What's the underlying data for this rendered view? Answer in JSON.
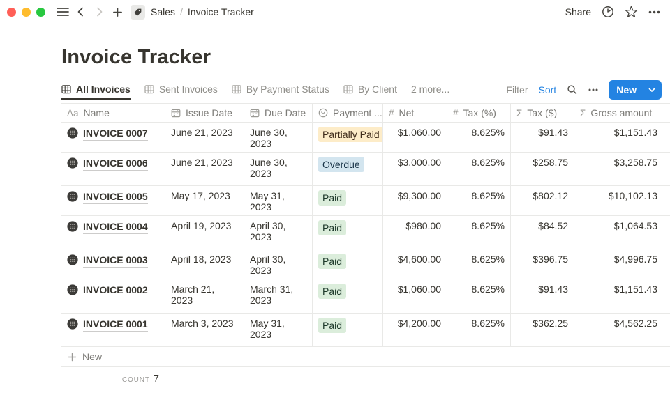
{
  "topbar": {
    "breadcrumb": {
      "parent": "Sales",
      "separator": "/",
      "current": "Invoice Tracker"
    },
    "share_label": "Share"
  },
  "page": {
    "title": "Invoice Tracker"
  },
  "tabs": [
    {
      "label": "All Invoices",
      "active": true,
      "icon": "table"
    },
    {
      "label": "Sent Invoices",
      "active": false,
      "icon": "table"
    },
    {
      "label": "By Payment Status",
      "active": false,
      "icon": "table"
    },
    {
      "label": "By Client",
      "active": false,
      "icon": "table"
    },
    {
      "label": "2 more...",
      "active": false,
      "icon": "none"
    }
  ],
  "toolbar": {
    "filter_label": "Filter",
    "sort_label": "Sort",
    "new_label": "New"
  },
  "table": {
    "columns": [
      {
        "label": "Name",
        "icon": "text"
      },
      {
        "label": "Issue Date",
        "icon": "calendar"
      },
      {
        "label": "Due Date",
        "icon": "calendar"
      },
      {
        "label": "Payment ...",
        "icon": "select"
      },
      {
        "label": "Net",
        "icon": "number"
      },
      {
        "label": "Tax (%)",
        "icon": "number"
      },
      {
        "label": "Tax ($)",
        "icon": "formula"
      },
      {
        "label": "Gross amount",
        "icon": "formula"
      }
    ],
    "rows": [
      {
        "name": "INVOICE 0007",
        "issue_date": "June 21, 2023",
        "due_date": "June 30, 2023",
        "payment_status": "Partially Paid",
        "status_color": "yellow",
        "net": "$1,060.00",
        "tax_pct": "8.625%",
        "tax_usd": "$91.43",
        "gross": "$1,151.43"
      },
      {
        "name": "INVOICE 0006",
        "issue_date": "June 21, 2023",
        "due_date": "June 30, 2023",
        "payment_status": "Overdue",
        "status_color": "blue",
        "net": "$3,000.00",
        "tax_pct": "8.625%",
        "tax_usd": "$258.75",
        "gross": "$3,258.75"
      },
      {
        "name": "INVOICE 0005",
        "issue_date": "May 17, 2023",
        "due_date": "May 31, 2023",
        "payment_status": "Paid",
        "status_color": "green",
        "net": "$9,300.00",
        "tax_pct": "8.625%",
        "tax_usd": "$802.12",
        "gross": "$10,102.13"
      },
      {
        "name": "INVOICE 0004",
        "issue_date": "April 19, 2023",
        "due_date": "April 30, 2023",
        "payment_status": "Paid",
        "status_color": "green",
        "net": "$980.00",
        "tax_pct": "8.625%",
        "tax_usd": "$84.52",
        "gross": "$1,064.53"
      },
      {
        "name": "INVOICE 0003",
        "issue_date": "April 18, 2023",
        "due_date": "April 30, 2023",
        "payment_status": "Paid",
        "status_color": "green",
        "net": "$4,600.00",
        "tax_pct": "8.625%",
        "tax_usd": "$396.75",
        "gross": "$4,996.75"
      },
      {
        "name": "INVOICE 0002",
        "issue_date": "March 21, 2023",
        "due_date": "March 31, 2023",
        "payment_status": "Paid",
        "status_color": "green",
        "net": "$1,060.00",
        "tax_pct": "8.625%",
        "tax_usd": "$91.43",
        "gross": "$1,151.43"
      },
      {
        "name": "INVOICE 0001",
        "issue_date": "March 3, 2023",
        "due_date": "May 31, 2023",
        "payment_status": "Paid",
        "status_color": "green",
        "net": "$4,200.00",
        "tax_pct": "8.625%",
        "tax_usd": "$362.25",
        "gross": "$4,562.25"
      }
    ],
    "new_row_label": "New",
    "count_label": "COUNT",
    "count_value": "7"
  },
  "colors": {
    "accent_blue": "#2383e2",
    "badge_yellow_bg": "#fdecc8",
    "badge_blue_bg": "#d3e5ef",
    "badge_green_bg": "#dbeddb",
    "row_border": "#e9e9e7",
    "traffic_red": "#ff5f57",
    "traffic_yellow": "#febc2e",
    "traffic_green": "#28c840"
  }
}
